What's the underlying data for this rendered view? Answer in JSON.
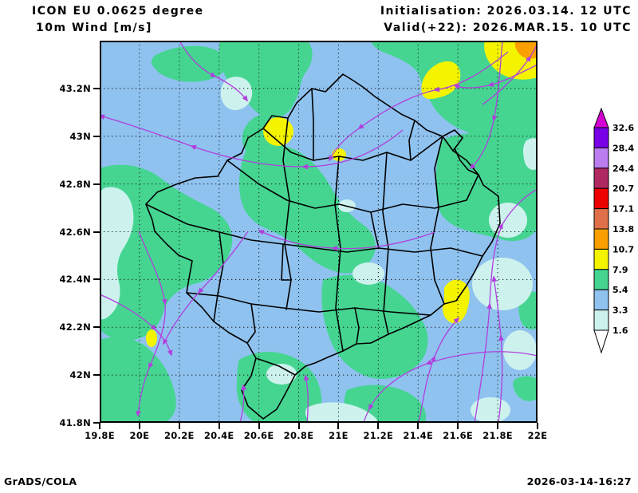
{
  "header": {
    "model": "ICON EU 0.0625 degree",
    "parameter": "10m Wind [m/s]",
    "init": "Initialisation: 2026.03.14. 12 UTC",
    "valid": "Valid(+22): 2026.MAR.15. 10 UTC"
  },
  "footer": {
    "credit": "GrADS/COLA",
    "timestamp": "2026-03-14-16:27"
  },
  "axes": {
    "lat": {
      "labels": [
        "43.2N",
        "43N",
        "42.8N",
        "42.6N",
        "42.4N",
        "42.2N",
        "42N",
        "41.8N"
      ],
      "values": [
        43.2,
        43.0,
        42.8,
        42.6,
        42.4,
        42.2,
        42.0,
        41.8
      ],
      "range": [
        41.8,
        43.4
      ]
    },
    "lon": {
      "labels": [
        "19.8E",
        "20E",
        "20.2E",
        "20.4E",
        "20.6E",
        "20.8E",
        "21E",
        "21.2E",
        "21.4E",
        "21.6E",
        "21.8E",
        "22E"
      ],
      "values": [
        19.8,
        20.0,
        20.2,
        20.4,
        20.6,
        20.8,
        21.0,
        21.2,
        21.4,
        21.6,
        21.8,
        22.0
      ],
      "range": [
        19.8,
        22.0
      ]
    }
  },
  "legend": {
    "tick_labels": [
      "1.6",
      "3.3",
      "5.4",
      "7.9",
      "10.7",
      "13.8",
      "17.1",
      "20.7",
      "24.4",
      "28.4",
      "32.6"
    ],
    "colors_bottom_up": [
      "#ffffff",
      "#cdf2ee",
      "#8fc2ef",
      "#45d591",
      "#f4f400",
      "#f9a000",
      "#e0704a",
      "#ed0000",
      "#b02860",
      "#bb7df0",
      "#7a00e8",
      "#d400d4"
    ]
  },
  "map": {
    "base_color": "#8fc2ef",
    "colors": {
      "cyan": "#cdf2ee",
      "green": "#45d591",
      "yellow": "#f4f400",
      "orange": "#f9a000"
    },
    "streamline_color": "#b040dd",
    "boundary_color": "#000000",
    "grid_color": "#1a1a1a",
    "frame_color": "#000000"
  }
}
